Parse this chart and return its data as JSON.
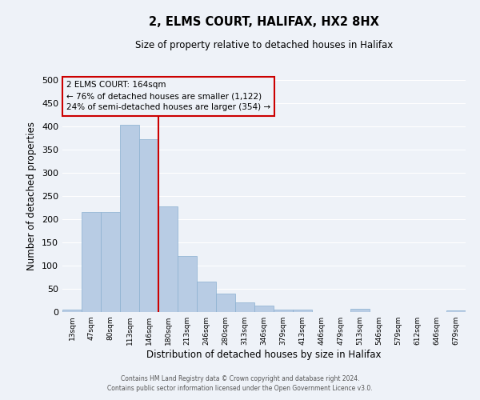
{
  "title": "2, ELMS COURT, HALIFAX, HX2 8HX",
  "subtitle": "Size of property relative to detached houses in Halifax",
  "xlabel": "Distribution of detached houses by size in Halifax",
  "ylabel": "Number of detached properties",
  "categories": [
    "13sqm",
    "47sqm",
    "80sqm",
    "113sqm",
    "146sqm",
    "180sqm",
    "213sqm",
    "246sqm",
    "280sqm",
    "313sqm",
    "346sqm",
    "379sqm",
    "413sqm",
    "446sqm",
    "479sqm",
    "513sqm",
    "546sqm",
    "579sqm",
    "612sqm",
    "646sqm",
    "679sqm"
  ],
  "bar_heights": [
    5,
    215,
    215,
    403,
    373,
    228,
    120,
    65,
    40,
    20,
    13,
    5,
    5,
    0,
    0,
    7,
    0,
    0,
    0,
    0,
    3
  ],
  "bar_color": "#b8cce4",
  "bar_edge_color": "#8ab0d0",
  "vline_index": 5,
  "vline_color": "#cc0000",
  "annotation_box_title": "2 ELMS COURT: 164sqm",
  "annotation_line1": "← 76% of detached houses are smaller (1,122)",
  "annotation_line2": "24% of semi-detached houses are larger (354) →",
  "annotation_box_color": "#cc0000",
  "ylim": [
    0,
    500
  ],
  "yticks": [
    0,
    50,
    100,
    150,
    200,
    250,
    300,
    350,
    400,
    450,
    500
  ],
  "background_color": "#eef2f8",
  "grid_color": "#ffffff",
  "footer_line1": "Contains HM Land Registry data © Crown copyright and database right 2024.",
  "footer_line2": "Contains public sector information licensed under the Open Government Licence v3.0."
}
